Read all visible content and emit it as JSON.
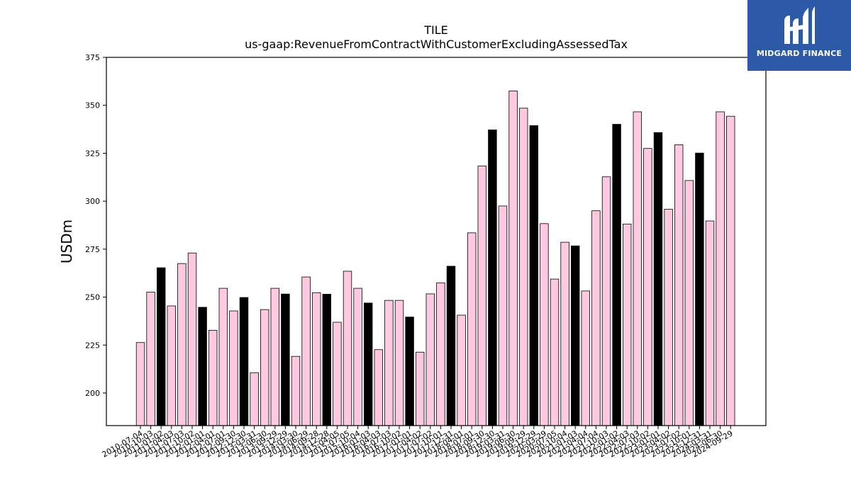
{
  "chart_data": {
    "type": "bar",
    "title": "TILE",
    "subtitle": "us-gaap:RevenueFromContractWithCustomerExcludingAssessedTax",
    "xlabel": "",
    "ylabel": "USDm",
    "ylim": [
      183,
      375
    ],
    "yticks": [
      200,
      225,
      250,
      275,
      300,
      325,
      350,
      375
    ],
    "colors": {
      "quarter": "#ffc8e1",
      "annual": "#000000",
      "edge": "#000000"
    },
    "categories": [
      "2010-07-04",
      "2010-10-03",
      "2011-01-02",
      "2011-04-03",
      "2011-07-03",
      "2011-10-02",
      "2012-01-01",
      "2012-04-01",
      "2012-07-01",
      "2012-09-30",
      "2012-12-30",
      "2013-03-31",
      "2013-06-30",
      "2013-09-29",
      "2013-12-29",
      "2014-03-30",
      "2014-06-29",
      "2014-09-28",
      "2014-12-28",
      "2015-04-05",
      "2015-07-05",
      "2015-10-04",
      "2016-01-03",
      "2016-04-03",
      "2016-07-03",
      "2016-10-02",
      "2017-01-01",
      "2017-04-02",
      "2017-07-02",
      "2017-10-01",
      "2017-12-31",
      "2018-04-01",
      "2018-07-01",
      "2018-09-30",
      "2018-12-30",
      "2019-03-31",
      "2019-06-30",
      "2019-09-29",
      "2019-12-29",
      "2020-03-29",
      "2020-07-05",
      "2020-10-04",
      "2021-01-03",
      "2021-04-04",
      "2021-07-04",
      "2021-10-03",
      "2022-01-02",
      "2022-04-03",
      "2022-07-03",
      "2022-10-02",
      "2023-01-01",
      "2023-04-02",
      "2023-07-02",
      "2023-10-01",
      "2023-12-31",
      "2024-03-31",
      "2024-06-30",
      "2024-09-29"
    ],
    "values": [
      226.3,
      252.6,
      265.3,
      245.4,
      267.5,
      273.0,
      244.7,
      232.7,
      254.6,
      242.8,
      249.8,
      210.6,
      243.5,
      254.6,
      251.6,
      219.1,
      260.5,
      252.3,
      251.5,
      236.9,
      263.5,
      254.6,
      246.9,
      222.6,
      248.3,
      248.3,
      239.6,
      221.3,
      251.7,
      257.4,
      266.1,
      240.6,
      283.5,
      318.4,
      337.2,
      297.5,
      357.5,
      348.5,
      339.4,
      288.3,
      259.4,
      278.6,
      276.7,
      253.2,
      295.0,
      312.7,
      340.1,
      288.1,
      346.6,
      327.5,
      335.8,
      295.8,
      329.4,
      310.8,
      325.1,
      289.7,
      346.6,
      344.3
    ],
    "annual_flags": [
      0,
      0,
      1,
      0,
      0,
      0,
      1,
      0,
      0,
      0,
      1,
      0,
      0,
      0,
      1,
      0,
      0,
      0,
      1,
      0,
      0,
      0,
      1,
      0,
      0,
      0,
      1,
      0,
      0,
      0,
      1,
      0,
      0,
      0,
      1,
      0,
      0,
      0,
      1,
      0,
      0,
      0,
      1,
      0,
      0,
      0,
      1,
      0,
      0,
      0,
      1,
      0,
      0,
      0,
      1,
      0,
      0,
      0
    ]
  },
  "logo": {
    "text": "MIDGARD FINANCE",
    "bg": "#2d5aa6"
  }
}
